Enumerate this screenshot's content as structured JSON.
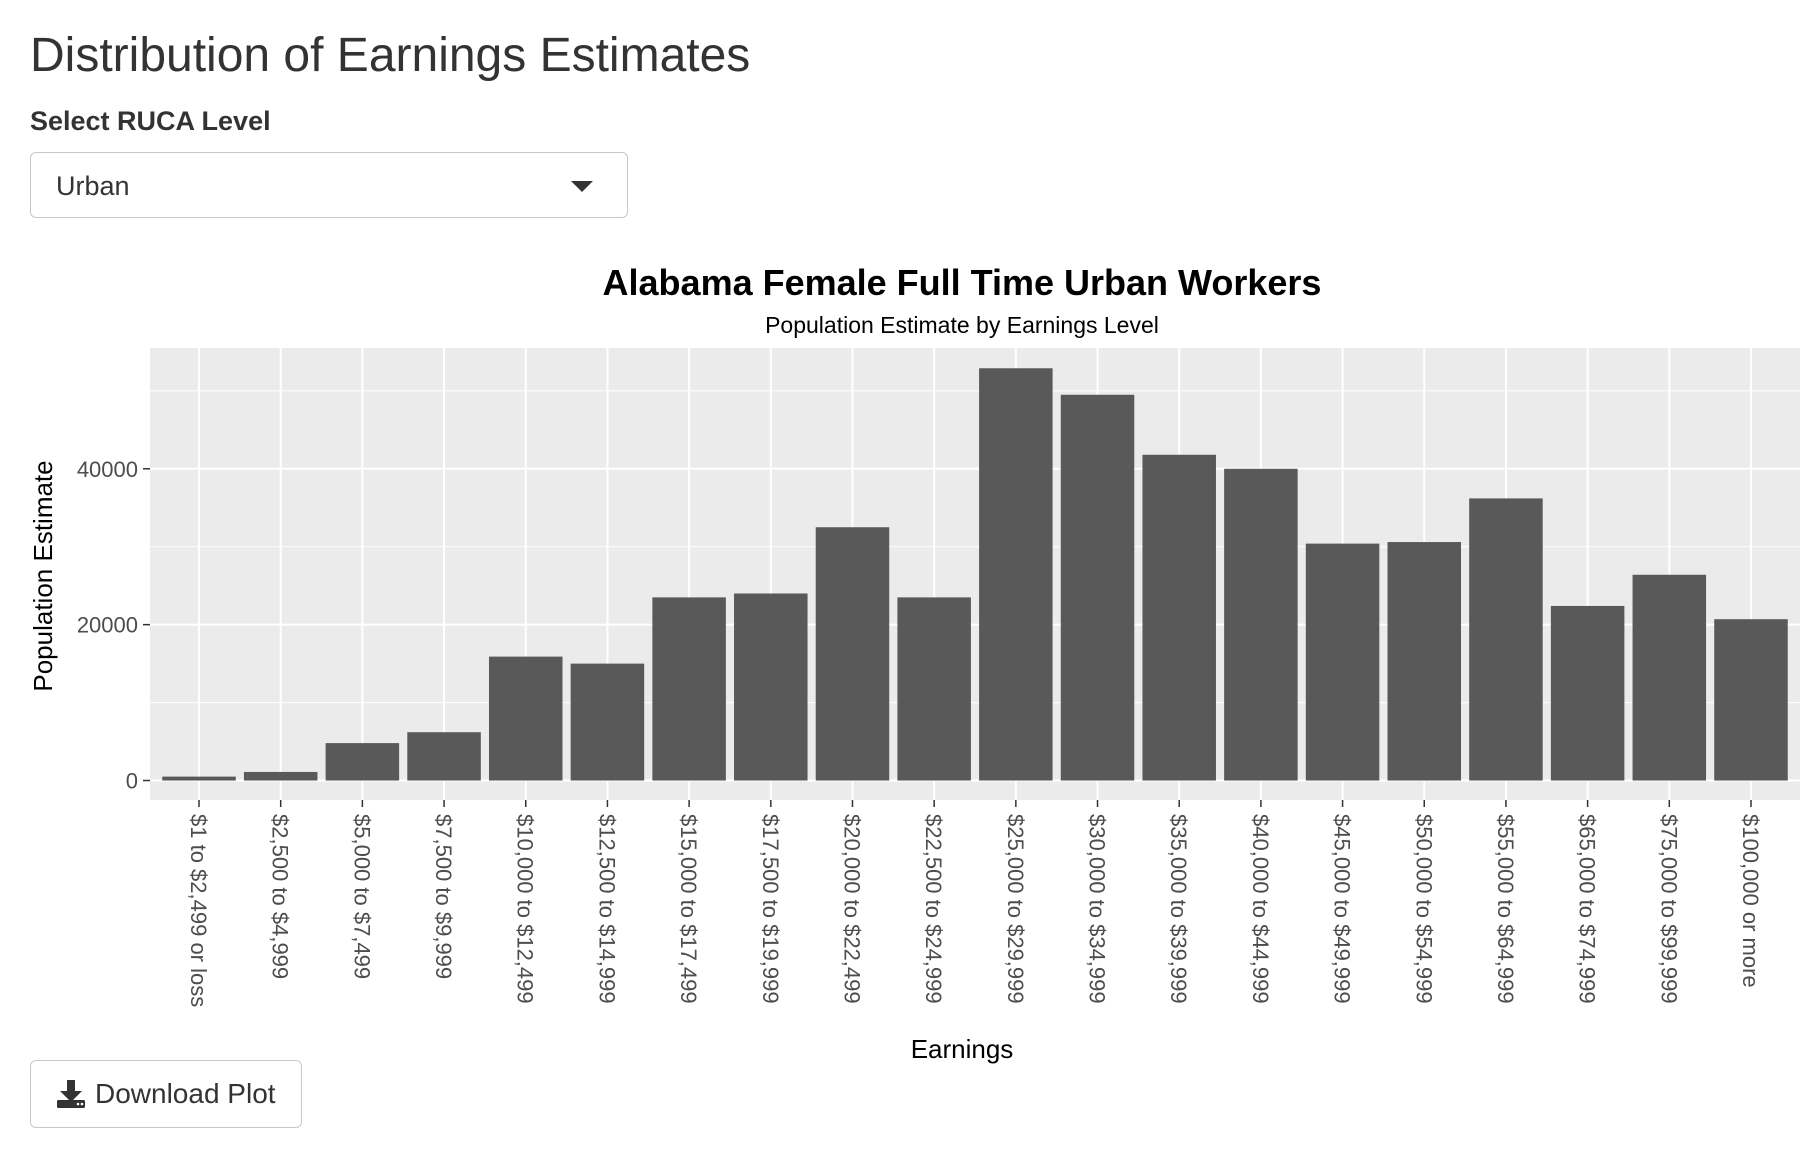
{
  "page": {
    "title": "Distribution of Earnings Estimates"
  },
  "ruca_select": {
    "label": "Select RUCA Level",
    "value": "Urban"
  },
  "download": {
    "label": "Download Plot",
    "icon": "download-icon"
  },
  "colors": {
    "bar": "#595959",
    "panel": "#ebebeb",
    "grid": "#ffffff",
    "text": "#333333"
  },
  "chart_data": {
    "type": "bar",
    "title": "Alabama Female Full Time Urban Workers",
    "subtitle": "Population Estimate by Earnings Level",
    "xlabel": "Earnings",
    "ylabel": "Population Estimate",
    "ylim": [
      -2500,
      55500
    ],
    "yticks": [
      0,
      20000,
      40000
    ],
    "ytick_labels": [
      "0",
      "20000",
      "40000"
    ],
    "grid": true,
    "legend": "none",
    "categories": [
      "$1 to $2,499 or loss",
      "$2,500 to $4,999",
      "$5,000 to $7,499",
      "$7,500 to $9,999",
      "$10,000 to $12,499",
      "$12,500 to $14,999",
      "$15,000 to $17,499",
      "$17,500 to $19,999",
      "$20,000 to $22,499",
      "$22,500 to $24,999",
      "$25,000 to $29,999",
      "$30,000 to $34,999",
      "$35,000 to $39,999",
      "$40,000 to $44,999",
      "$45,000 to $49,999",
      "$50,000 to $54,999",
      "$55,000 to $64,999",
      "$65,000 to $74,999",
      "$75,000 to $99,999",
      "$100,000 or more"
    ],
    "values": [
      500,
      1100,
      4800,
      6200,
      15900,
      15000,
      23500,
      24000,
      32500,
      23500,
      52900,
      49500,
      41800,
      40000,
      30400,
      30600,
      36200,
      22400,
      26400,
      20700
    ]
  }
}
